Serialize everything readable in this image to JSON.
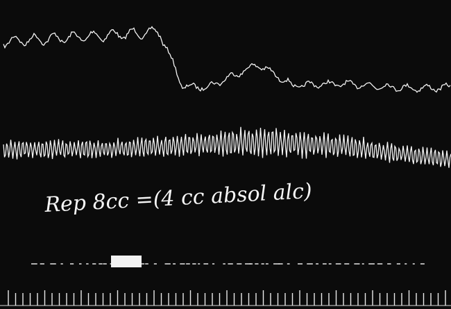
{
  "annotation": "Rep 8cc =(4 cc absol alc)"
}
